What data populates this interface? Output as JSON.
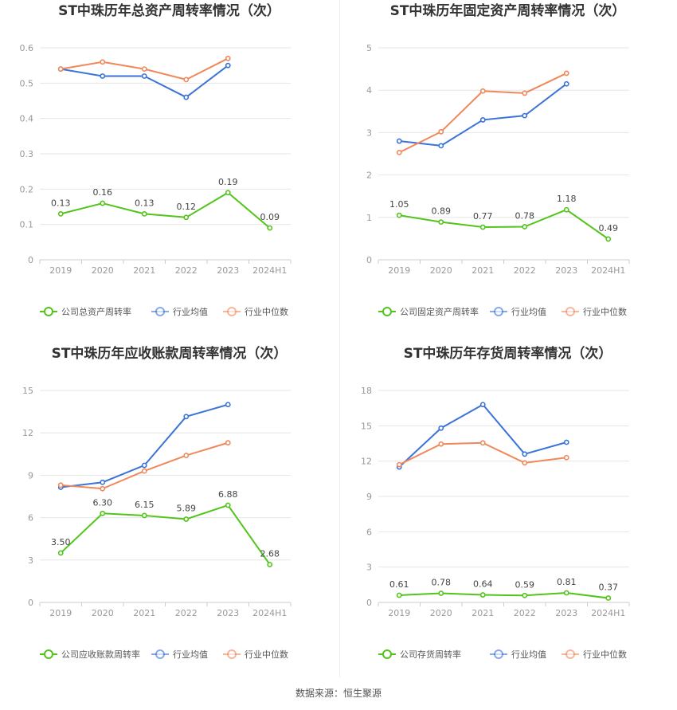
{
  "source": "数据来源：恒生聚源",
  "chart_data": [
    {
      "type": "line",
      "title": "ST中珠历年总资产周转率情况（次）",
      "categories": [
        "2019",
        "2020",
        "2021",
        "2022",
        "2023",
        "2024H1"
      ],
      "ylim": [
        0,
        0.6
      ],
      "yticks": [
        "0",
        "0.1",
        "0.2",
        "0.3",
        "0.4",
        "0.5",
        "0.6"
      ],
      "grid": true,
      "legend": "bottom",
      "series": [
        {
          "name": "公司总资产周转率",
          "color": "#52c41a",
          "values": [
            0.13,
            0.16,
            0.13,
            0.12,
            0.19,
            0.09
          ],
          "labels": [
            "0.13",
            "0.16",
            "0.13",
            "0.12",
            "0.19",
            "0.09"
          ]
        },
        {
          "name": "行业均值",
          "color": "#3b73d9",
          "values": [
            0.54,
            0.52,
            0.52,
            0.46,
            0.55,
            null
          ]
        },
        {
          "name": "行业中位数",
          "color": "#f0885a",
          "values": [
            0.54,
            0.56,
            0.54,
            0.51,
            0.57,
            null
          ]
        }
      ]
    },
    {
      "type": "line",
      "title": "ST中珠历年固定资产周转率情况（次）",
      "categories": [
        "2019",
        "2020",
        "2021",
        "2022",
        "2023",
        "2024H1"
      ],
      "ylim": [
        0,
        5
      ],
      "yticks": [
        "0",
        "1",
        "2",
        "3",
        "4",
        "5"
      ],
      "grid": true,
      "legend": "bottom",
      "series": [
        {
          "name": "公司固定资产周转率",
          "color": "#52c41a",
          "values": [
            1.05,
            0.89,
            0.77,
            0.78,
            1.18,
            0.49
          ],
          "labels": [
            "1.05",
            "0.89",
            "0.77",
            "0.78",
            "1.18",
            "0.49"
          ]
        },
        {
          "name": "行业均值",
          "color": "#3b73d9",
          "values": [
            2.8,
            2.69,
            3.3,
            3.4,
            4.15,
            null
          ]
        },
        {
          "name": "行业中位数",
          "color": "#f0885a",
          "values": [
            2.53,
            3.02,
            3.98,
            3.93,
            4.4,
            null
          ]
        }
      ]
    },
    {
      "type": "line",
      "title": "ST中珠历年应收账款周转率情况（次）",
      "categories": [
        "2019",
        "2020",
        "2021",
        "2022",
        "2023",
        "2024H1"
      ],
      "ylim": [
        0,
        15
      ],
      "yticks": [
        "0",
        "3",
        "6",
        "9",
        "12",
        "15"
      ],
      "grid": true,
      "legend": "bottom",
      "series": [
        {
          "name": "公司应收账款周转率",
          "color": "#52c41a",
          "values": [
            3.5,
            6.3,
            6.15,
            5.89,
            6.88,
            2.68
          ],
          "labels": [
            "3.50",
            "6.30",
            "6.15",
            "5.89",
            "6.88",
            "2.68"
          ]
        },
        {
          "name": "行业均值",
          "color": "#3b73d9",
          "values": [
            8.15,
            8.5,
            9.7,
            13.15,
            14.0,
            null
          ]
        },
        {
          "name": "行业中位数",
          "color": "#f0885a",
          "values": [
            8.3,
            8.05,
            9.3,
            10.4,
            11.3,
            null
          ]
        }
      ]
    },
    {
      "type": "line",
      "title": "ST中珠历年存货周转率情况（次）",
      "categories": [
        "2019",
        "2020",
        "2021",
        "2022",
        "2023",
        "2024H1"
      ],
      "ylim": [
        0,
        18
      ],
      "yticks": [
        "0",
        "3",
        "6",
        "9",
        "12",
        "15",
        "18"
      ],
      "grid": true,
      "legend": "bottom",
      "series": [
        {
          "name": "公司存货周转率",
          "color": "#52c41a",
          "values": [
            0.61,
            0.78,
            0.64,
            0.59,
            0.81,
            0.37
          ],
          "labels": [
            "0.61",
            "0.78",
            "0.64",
            "0.59",
            "0.81",
            "0.37"
          ]
        },
        {
          "name": "行业均值",
          "color": "#3b73d9",
          "values": [
            11.5,
            14.8,
            16.8,
            12.6,
            13.6,
            null
          ]
        },
        {
          "name": "行业中位数",
          "color": "#f0885a",
          "values": [
            11.7,
            13.45,
            13.55,
            11.85,
            12.3,
            null
          ]
        }
      ]
    }
  ]
}
